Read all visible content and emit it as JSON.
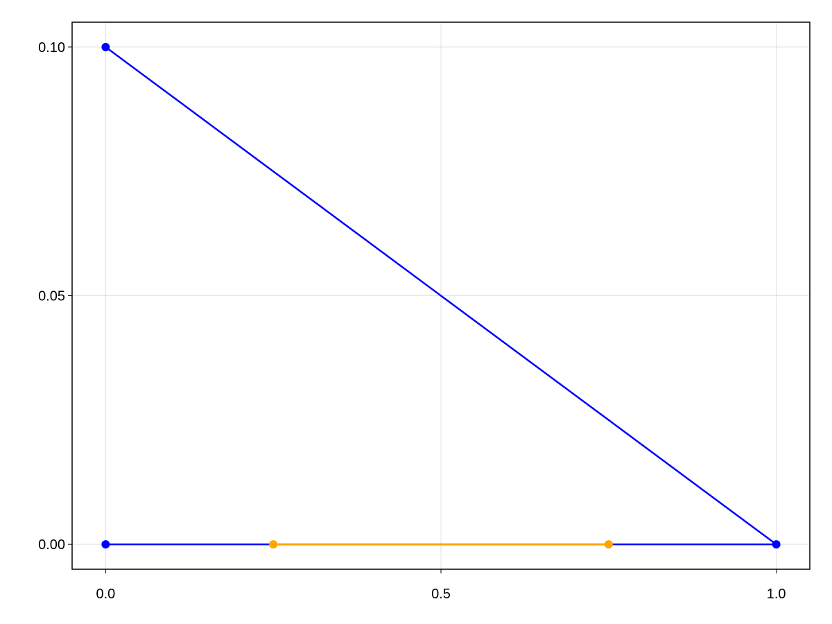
{
  "chart_data": {
    "type": "line",
    "title": "",
    "xlabel": "",
    "ylabel": "",
    "xlim": [
      -0.05,
      1.05
    ],
    "ylim": [
      -0.005,
      0.105
    ],
    "xticks": [
      0.0,
      0.5,
      1.0
    ],
    "xtick_labels": [
      "0.0",
      "0.5",
      "1.0"
    ],
    "yticks": [
      0.0,
      0.05,
      0.1
    ],
    "ytick_labels": [
      "0.00",
      "0.05",
      "0.10"
    ],
    "grid": true,
    "series": [
      {
        "color": "#0000ff",
        "markers": true,
        "x": [
          0,
          1,
          0
        ],
        "y": [
          0.1,
          0,
          0
        ]
      },
      {
        "color": "#ffa500",
        "markers": true,
        "x": [
          0.25,
          0.75
        ],
        "y": [
          0,
          0
        ]
      }
    ]
  }
}
